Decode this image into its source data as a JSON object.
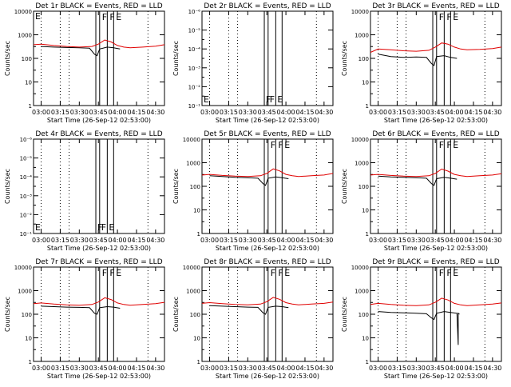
{
  "xlabel": "Start Time (26-Sep-12 02:53:00)",
  "ylabel": "Counts/sec",
  "x_ticks": [
    "03:00",
    "03:15",
    "03:30",
    "03:45",
    "04:00",
    "04:15",
    "04:30"
  ],
  "x_range_minutes": [
    -6,
    97
  ],
  "vlines_dotted_minutes": [
    0,
    15,
    22,
    84
  ],
  "vlines_solid_minutes": [
    43,
    46,
    52,
    57
  ],
  "flag_labels": [
    "F",
    "F",
    "E"
  ],
  "chart_data": [
    {
      "type": "line",
      "title": "Det 1r BLACK = Events, RED = LLD",
      "yscale": "log",
      "ylim": [
        1,
        10000
      ],
      "ytick_labels": [
        "1",
        "10",
        "100",
        "1000",
        "10000"
      ],
      "flag_label_left": "E",
      "series": [
        {
          "color": "#000000",
          "x": [
            0,
            10,
            20,
            30,
            38,
            42,
            44,
            46,
            52,
            57,
            62
          ],
          "y": [
            320,
            300,
            290,
            280,
            270,
            150,
            130,
            250,
            300,
            280,
            250
          ]
        },
        {
          "color": "#e00000",
          "x": [
            -6,
            0,
            10,
            20,
            30,
            40,
            45,
            50,
            55,
            60,
            65,
            70,
            80,
            90,
            97
          ],
          "y": [
            380,
            400,
            350,
            320,
            300,
            320,
            400,
            600,
            500,
            350,
            300,
            280,
            300,
            330,
            380
          ]
        }
      ]
    },
    {
      "type": "line",
      "title": "Det 2r BLACK = Events, RED = LLD",
      "yscale": "linear",
      "ylim": [
        0,
        1
      ],
      "ytick_labels": [
        "10⁻¹",
        "10⁻²",
        "10⁻³",
        "10⁻⁴",
        "10⁻⁵",
        "10⁻⁶"
      ],
      "flag_label_left": "E",
      "series": []
    },
    {
      "type": "line",
      "title": "Det 3r BLACK = Events, RED = LLD",
      "yscale": "log",
      "ylim": [
        1,
        10000
      ],
      "ytick_labels": [
        "1",
        "10",
        "100",
        "1000",
        "10000"
      ],
      "flag_label_left": "",
      "series": [
        {
          "color": "#000000",
          "x": [
            0,
            10,
            20,
            30,
            38,
            42,
            44,
            46,
            52,
            57,
            62
          ],
          "y": [
            150,
            120,
            110,
            115,
            110,
            60,
            50,
            120,
            130,
            110,
            100
          ]
        },
        {
          "color": "#e00000",
          "x": [
            -6,
            0,
            10,
            20,
            30,
            40,
            45,
            50,
            55,
            60,
            65,
            70,
            80,
            90,
            97
          ],
          "y": [
            180,
            250,
            230,
            210,
            200,
            220,
            300,
            450,
            400,
            300,
            250,
            230,
            240,
            260,
            300
          ]
        }
      ]
    },
    {
      "type": "line",
      "title": "Det 4r BLACK = Events, RED = LLD",
      "yscale": "linear",
      "ylim": [
        0,
        1
      ],
      "ytick_labels": [
        "10⁻¹",
        "10⁻²",
        "10⁻³",
        "10⁻⁴",
        "10⁻⁵",
        "10⁻⁶"
      ],
      "flag_label_left": "E",
      "series": []
    },
    {
      "type": "line",
      "title": "Det 5r BLACK = Events, RED = LLD",
      "yscale": "log",
      "ylim": [
        1,
        10000
      ],
      "ytick_labels": [
        "1",
        "10",
        "100",
        "1000",
        "10000"
      ],
      "flag_label_left": "",
      "series": [
        {
          "color": "#000000",
          "x": [
            0,
            10,
            20,
            30,
            38,
            42,
            44,
            46,
            52,
            57,
            62
          ],
          "y": [
            280,
            260,
            240,
            230,
            220,
            130,
            110,
            220,
            250,
            230,
            210
          ]
        },
        {
          "color": "#e00000",
          "x": [
            -6,
            0,
            10,
            20,
            30,
            40,
            45,
            50,
            55,
            60,
            65,
            70,
            80,
            90,
            97
          ],
          "y": [
            300,
            320,
            290,
            270,
            260,
            280,
            350,
            550,
            450,
            320,
            280,
            260,
            280,
            300,
            350
          ]
        }
      ]
    },
    {
      "type": "line",
      "title": "Det 6r BLACK = Events, RED = LLD",
      "yscale": "log",
      "ylim": [
        1,
        10000
      ],
      "ytick_labels": [
        "1",
        "10",
        "100",
        "1000",
        "10000"
      ],
      "flag_label_left": "",
      "series": [
        {
          "color": "#000000",
          "x": [
            0,
            10,
            20,
            30,
            38,
            42,
            44,
            46,
            52,
            57,
            62
          ],
          "y": [
            270,
            250,
            240,
            230,
            220,
            130,
            110,
            210,
            240,
            220,
            200
          ]
        },
        {
          "color": "#e00000",
          "x": [
            -6,
            0,
            10,
            20,
            30,
            40,
            45,
            50,
            55,
            60,
            65,
            70,
            80,
            90,
            97
          ],
          "y": [
            300,
            320,
            290,
            270,
            260,
            280,
            350,
            540,
            440,
            320,
            280,
            260,
            280,
            300,
            340
          ]
        }
      ]
    },
    {
      "type": "line",
      "title": "Det 7r BLACK = Events, RED = LLD",
      "yscale": "log",
      "ylim": [
        1,
        10000
      ],
      "ytick_labels": [
        "1",
        "10",
        "100",
        "1000",
        "10000"
      ],
      "flag_label_left": "",
      "series": [
        {
          "color": "#000000",
          "x": [
            0,
            10,
            20,
            30,
            38,
            42,
            44,
            46,
            52,
            57,
            62
          ],
          "y": [
            220,
            210,
            200,
            195,
            190,
            110,
            100,
            190,
            210,
            200,
            180
          ]
        },
        {
          "color": "#e00000",
          "x": [
            -6,
            0,
            10,
            20,
            30,
            40,
            45,
            50,
            55,
            60,
            65,
            70,
            80,
            90,
            97
          ],
          "y": [
            280,
            300,
            270,
            250,
            240,
            260,
            330,
            500,
            420,
            300,
            260,
            240,
            260,
            280,
            320
          ]
        }
      ]
    },
    {
      "type": "line",
      "title": "Det 8r BLACK = Events, RED = LLD",
      "yscale": "log",
      "ylim": [
        1,
        10000
      ],
      "ytick_labels": [
        "1",
        "10",
        "100",
        "1000",
        "10000"
      ],
      "flag_label_left": "",
      "series": [
        {
          "color": "#000000",
          "x": [
            0,
            10,
            20,
            30,
            38,
            42,
            44,
            46,
            52,
            57,
            62
          ],
          "y": [
            230,
            220,
            210,
            200,
            195,
            115,
            100,
            195,
            220,
            210,
            190
          ]
        },
        {
          "color": "#e00000",
          "x": [
            -6,
            0,
            10,
            20,
            30,
            40,
            45,
            50,
            55,
            60,
            65,
            70,
            80,
            90,
            97
          ],
          "y": [
            290,
            310,
            280,
            260,
            250,
            270,
            340,
            520,
            430,
            310,
            270,
            250,
            270,
            290,
            330
          ]
        }
      ]
    },
    {
      "type": "line",
      "title": "Det 9r BLACK = Events, RED = LLD",
      "yscale": "log",
      "ylim": [
        1,
        10000
      ],
      "ytick_labels": [
        "1",
        "10",
        "100",
        "1000",
        "10000"
      ],
      "flag_label_left": "",
      "series": [
        {
          "color": "#000000",
          "x": [
            0,
            10,
            20,
            30,
            38,
            42,
            44,
            46,
            52,
            57,
            62,
            63,
            63,
            64
          ],
          "y": [
            130,
            120,
            115,
            110,
            105,
            70,
            60,
            110,
            130,
            120,
            110,
            5,
            110,
            100
          ]
        },
        {
          "color": "#e00000",
          "x": [
            -6,
            0,
            10,
            20,
            30,
            40,
            45,
            50,
            55,
            60,
            65,
            70,
            80,
            90,
            97
          ],
          "y": [
            260,
            290,
            260,
            240,
            230,
            250,
            320,
            480,
            400,
            290,
            250,
            230,
            250,
            270,
            300
          ]
        }
      ]
    }
  ]
}
